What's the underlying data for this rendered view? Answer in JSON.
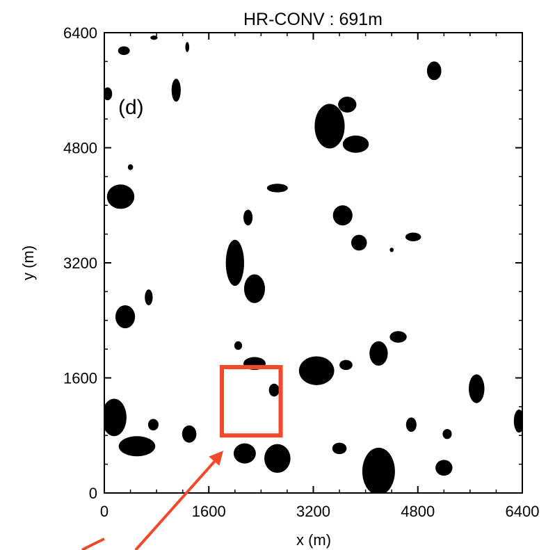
{
  "chart_data": {
    "type": "scatter",
    "title": "HR-CONV : 691m",
    "panel_label": "(d)",
    "xlabel": "x (m)",
    "ylabel": "y (m)",
    "xlim": [
      0,
      6400
    ],
    "ylim": [
      0,
      6400
    ],
    "xticks": [
      "0",
      "1600",
      "3200",
      "4800",
      "6400"
    ],
    "yticks": [
      "0",
      "1600",
      "3200",
      "4800",
      "6400"
    ],
    "grid": false,
    "cell_color": "#000000",
    "highlight_color": "#f04a2a",
    "highlight_box": {
      "x": [
        1800,
        2700
      ],
      "y": [
        800,
        1750
      ]
    },
    "cells": [
      {
        "x": 300,
        "y": 6150,
        "rx": 90,
        "ry": 60
      },
      {
        "x": 760,
        "y": 6330,
        "rx": 55,
        "ry": 30
      },
      {
        "x": 1270,
        "y": 6200,
        "rx": 30,
        "ry": 70
      },
      {
        "x": 1100,
        "y": 5600,
        "rx": 70,
        "ry": 160
      },
      {
        "x": 50,
        "y": 5550,
        "rx": 70,
        "ry": 90
      },
      {
        "x": 5050,
        "y": 5870,
        "rx": 110,
        "ry": 130
      },
      {
        "x": 3450,
        "y": 5100,
        "rx": 230,
        "ry": 310
      },
      {
        "x": 3850,
        "y": 4850,
        "rx": 200,
        "ry": 120
      },
      {
        "x": 3720,
        "y": 5400,
        "rx": 140,
        "ry": 110
      },
      {
        "x": 250,
        "y": 4120,
        "rx": 210,
        "ry": 170
      },
      {
        "x": 400,
        "y": 4530,
        "rx": 40,
        "ry": 40
      },
      {
        "x": 2650,
        "y": 4240,
        "rx": 160,
        "ry": 60
      },
      {
        "x": 2200,
        "y": 3830,
        "rx": 70,
        "ry": 110
      },
      {
        "x": 3650,
        "y": 3860,
        "rx": 150,
        "ry": 140
      },
      {
        "x": 3900,
        "y": 3480,
        "rx": 120,
        "ry": 110
      },
      {
        "x": 4730,
        "y": 3560,
        "rx": 120,
        "ry": 60
      },
      {
        "x": 4400,
        "y": 3380,
        "rx": 30,
        "ry": 30
      },
      {
        "x": 2000,
        "y": 3200,
        "rx": 140,
        "ry": 320
      },
      {
        "x": 2300,
        "y": 2840,
        "rx": 160,
        "ry": 200
      },
      {
        "x": 680,
        "y": 2720,
        "rx": 60,
        "ry": 110
      },
      {
        "x": 320,
        "y": 2450,
        "rx": 150,
        "ry": 160
      },
      {
        "x": 4500,
        "y": 2170,
        "rx": 130,
        "ry": 80
      },
      {
        "x": 4200,
        "y": 1940,
        "rx": 140,
        "ry": 170
      },
      {
        "x": 3700,
        "y": 1780,
        "rx": 100,
        "ry": 70
      },
      {
        "x": 3250,
        "y": 1700,
        "rx": 270,
        "ry": 200
      },
      {
        "x": 2300,
        "y": 1800,
        "rx": 170,
        "ry": 90
      },
      {
        "x": 2600,
        "y": 1430,
        "rx": 80,
        "ry": 90
      },
      {
        "x": 2050,
        "y": 2050,
        "rx": 60,
        "ry": 60
      },
      {
        "x": 5700,
        "y": 1450,
        "rx": 120,
        "ry": 200
      },
      {
        "x": 150,
        "y": 1050,
        "rx": 190,
        "ry": 260
      },
      {
        "x": 500,
        "y": 650,
        "rx": 280,
        "ry": 140
      },
      {
        "x": 750,
        "y": 950,
        "rx": 80,
        "ry": 80
      },
      {
        "x": 1300,
        "y": 820,
        "rx": 110,
        "ry": 120
      },
      {
        "x": 2150,
        "y": 550,
        "rx": 170,
        "ry": 140
      },
      {
        "x": 2650,
        "y": 480,
        "rx": 200,
        "ry": 200
      },
      {
        "x": 3600,
        "y": 620,
        "rx": 110,
        "ry": 80
      },
      {
        "x": 4200,
        "y": 300,
        "rx": 250,
        "ry": 330
      },
      {
        "x": 4700,
        "y": 950,
        "rx": 80,
        "ry": 100
      },
      {
        "x": 5250,
        "y": 820,
        "rx": 70,
        "ry": 70
      },
      {
        "x": 5200,
        "y": 350,
        "rx": 130,
        "ry": 110
      },
      {
        "x": 6350,
        "y": 1000,
        "rx": 80,
        "ry": 160
      }
    ]
  }
}
